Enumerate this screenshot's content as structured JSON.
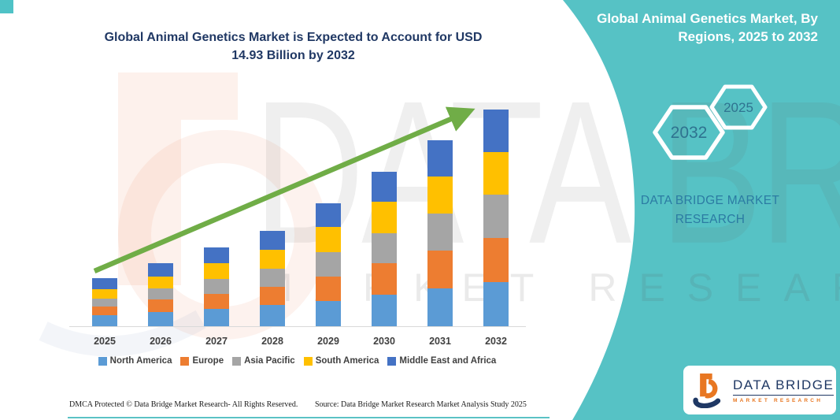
{
  "main_title": {
    "line1": "Global Animal Genetics Market is Expected to Account for USD",
    "line2": "14.93 Billion by 2032"
  },
  "panel": {
    "title_line1": "Global Animal Genetics Market, By",
    "title_line2": "Regions, 2025 to 2032",
    "hexagon_back_label": "2032",
    "hexagon_front_label": "2025",
    "brand_line1": "DATA BRIDGE MARKET",
    "brand_line2": "RESEARCH",
    "logo_name": "DATA BRIDGE",
    "logo_tagline": "MARKET RESEARCH"
  },
  "watermark": {
    "big_text": "DATA BRIDGE",
    "row_text": "MARKET RESEARCH"
  },
  "footer": {
    "left": "DMCA Protected © Data Bridge Market Research-  All Rights Reserved.",
    "right": "Source: Data Bridge Market Research  Market Analysis Study 2025"
  },
  "colors": {
    "teal_panel": "#56C2C5",
    "title_navy": "#203864",
    "arrow_green": "#70AD47",
    "north_america": "#5B9BD5",
    "europe": "#ED7D31",
    "asia_pacific": "#A5A5A5",
    "south_america": "#FFC000",
    "middle_east_africa": "#4472C4",
    "logo_orange": "#E87722",
    "logo_navy": "#1F3864"
  },
  "chart_data": {
    "type": "bar",
    "stacked": true,
    "title": "Global Animal Genetics Market is Expected to Account for USD 14.93 Billion by 2032",
    "unit": "USD Billion",
    "categories": [
      "2025",
      "2026",
      "2027",
      "2028",
      "2029",
      "2030",
      "2031",
      "2032"
    ],
    "series": [
      {
        "name": "North America",
        "color": "#5B9BD5",
        "values": [
          0.83,
          1.05,
          1.26,
          1.5,
          1.8,
          2.22,
          2.66,
          3.1
        ]
      },
      {
        "name": "Europe",
        "color": "#ED7D31",
        "values": [
          0.56,
          0.82,
          1.04,
          1.27,
          1.66,
          2.14,
          2.58,
          3.0
        ]
      },
      {
        "name": "Asia Pacific",
        "color": "#A5A5A5",
        "values": [
          0.58,
          0.78,
          1.02,
          1.25,
          1.7,
          2.1,
          2.54,
          2.97
        ]
      },
      {
        "name": "South America",
        "color": "#FFC000",
        "values": [
          0.63,
          0.81,
          1.05,
          1.28,
          1.7,
          2.12,
          2.56,
          2.95
        ]
      },
      {
        "name": "Middle East and Africa",
        "color": "#4472C4",
        "values": [
          0.73,
          0.9,
          1.1,
          1.3,
          1.64,
          2.08,
          2.48,
          2.91
        ]
      }
    ],
    "totals": [
      3.33,
      4.36,
      5.47,
      6.6,
      8.5,
      10.66,
      12.82,
      14.93
    ],
    "ylim": [
      0,
      15
    ],
    "grid": false,
    "legend_position": "bottom",
    "annotations": [
      "upward green trend arrow"
    ]
  }
}
